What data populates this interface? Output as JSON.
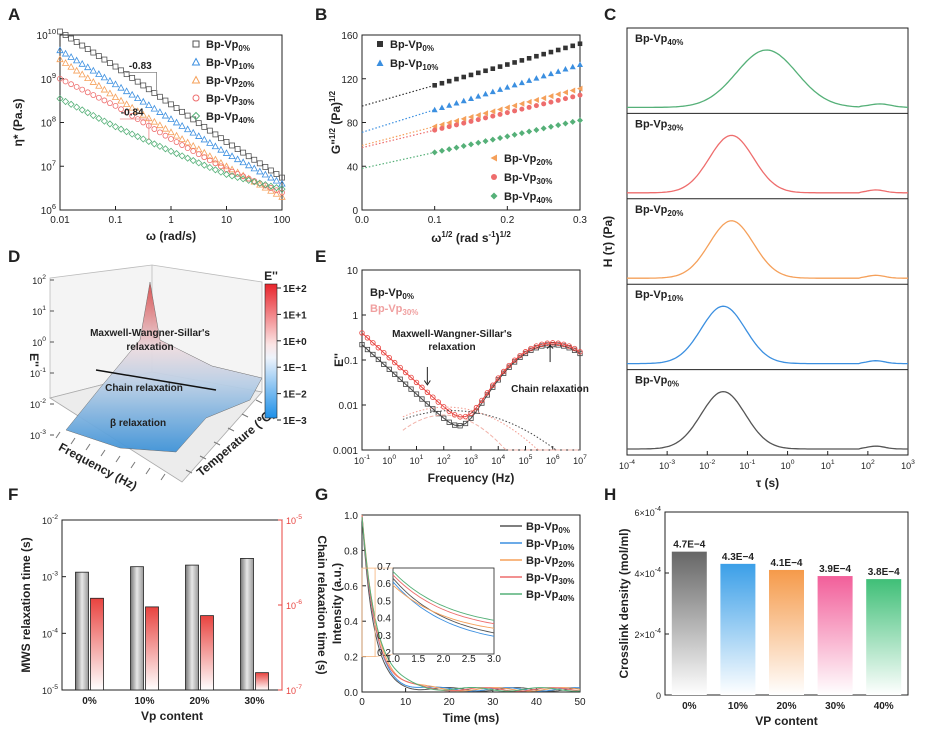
{
  "panel_labels": {
    "A": "A",
    "B": "B",
    "C": "C",
    "D": "D",
    "E": "E",
    "F": "F",
    "G": "G",
    "H": "H"
  },
  "colors": {
    "s0": "#555555",
    "s10": "#3b8fe0",
    "s20": "#f5a05a",
    "s30": "#ee6d6d",
    "s40": "#55b078",
    "red": "#e8433f",
    "green_b": "#4caf6a",
    "black_b": "#444444"
  },
  "chart_data": [
    {
      "id": "A",
      "type": "scatter",
      "xlabel": "ω (rad/s)",
      "ylabel": "η* (Pa.s)",
      "xscale": "log",
      "yscale": "log",
      "xlim": [
        0.01,
        100
      ],
      "ylim": [
        1000000.0,
        10000000000.0
      ],
      "xticks": [
        "0.01",
        "0.1",
        "1",
        "10",
        "100"
      ],
      "yticks": [
        "10^6",
        "10^7",
        "10^8",
        "10^9",
        "10^10"
      ],
      "annotations": [
        "-0.83",
        "-0.84"
      ],
      "series": [
        {
          "name": "Bp-Vp",
          "sub": "0%",
          "x": [
            0.01,
            0.1,
            1,
            10,
            100
          ],
          "y": [
            12000000000.0,
            1900000000.0,
            260000000.0,
            36000000.0,
            5500000.0
          ]
        },
        {
          "name": "Bp-Vp",
          "sub": "10%",
          "x": [
            0.01,
            0.1,
            1,
            10,
            100
          ],
          "y": [
            4500000000.0,
            750000000.0,
            120000000.0,
            20000000.0,
            4000000.0
          ]
        },
        {
          "name": "Bp-Vp",
          "sub": "20%",
          "x": [
            0.01,
            0.1,
            1,
            10,
            100
          ],
          "y": [
            2800000000.0,
            380000000.0,
            60000000.0,
            10000000.0,
            2000000.0
          ]
        },
        {
          "name": "Bp-Vp",
          "sub": "30%",
          "x": [
            0.01,
            0.1,
            1,
            10,
            100
          ],
          "y": [
            1000000000.0,
            240000000.0,
            42000000.0,
            8500000.0,
            2500000.0
          ]
        },
        {
          "name": "Bp-Vp",
          "sub": "40%",
          "x": [
            0.01,
            0.1,
            1,
            10,
            100
          ],
          "y": [
            350000000.0,
            80000000.0,
            22000000.0,
            6500000.0,
            3000000.0
          ]
        }
      ]
    },
    {
      "id": "B",
      "type": "scatter",
      "xlabel": "ω^1/2 (rad s^-1)^1/2",
      "ylabel": "G\"^1/2 (Pa)^1/2",
      "xlim": [
        0,
        0.3
      ],
      "ylim": [
        0,
        160
      ],
      "xticks": [
        "0.0",
        "0.1",
        "0.2",
        "0.3"
      ],
      "yticks": [
        "0",
        "40",
        "80",
        "120",
        "160"
      ],
      "series": [
        {
          "name": "Bp-Vp",
          "sub": "0%",
          "intercept": 95,
          "x": [
            0.1,
            0.15,
            0.2,
            0.25,
            0.3
          ],
          "y": [
            114,
            124,
            133,
            142,
            152
          ]
        },
        {
          "name": "Bp-Vp",
          "sub": "10%",
          "intercept": 71,
          "x": [
            0.1,
            0.15,
            0.2,
            0.25,
            0.3
          ],
          "y": [
            92,
            102,
            112,
            122,
            133
          ]
        },
        {
          "name": "Bp-Vp",
          "sub": "20%",
          "intercept": 59,
          "x": [
            0.1,
            0.15,
            0.2,
            0.25,
            0.3
          ],
          "y": [
            77,
            85,
            94,
            103,
            111
          ]
        },
        {
          "name": "Bp-Vp",
          "sub": "30%",
          "intercept": 57,
          "x": [
            0.1,
            0.15,
            0.2,
            0.25,
            0.3
          ],
          "y": [
            73,
            81,
            89,
            97,
            105
          ]
        },
        {
          "name": "Bp-Vp",
          "sub": "40%",
          "intercept": 38,
          "x": [
            0.1,
            0.15,
            0.2,
            0.25,
            0.3
          ],
          "y": [
            53,
            60,
            67,
            74,
            82
          ]
        }
      ]
    },
    {
      "id": "C",
      "type": "line",
      "xlabel": "τ (s)",
      "ylabel": "H (τ) (Pa)",
      "xscale": "log",
      "xlim": [
        0.0001,
        1000.0
      ],
      "xticks": [
        "10^-4",
        "10^-3",
        "10^-2",
        "10^-1",
        "10^0",
        "10^1",
        "10^2",
        "10^3"
      ],
      "panels": [
        {
          "name": "Bp-Vp",
          "sub": "40%",
          "peak_tau": 0.3
        },
        {
          "name": "Bp-Vp",
          "sub": "30%",
          "peak_tau": 0.04
        },
        {
          "name": "Bp-Vp",
          "sub": "20%",
          "peak_tau": 0.04
        },
        {
          "name": "Bp-Vp",
          "sub": "10%",
          "peak_tau": 0.025
        },
        {
          "name": "Bp-Vp",
          "sub": "0%",
          "peak_tau": 0.025
        }
      ]
    },
    {
      "id": "D",
      "type": "heatmap",
      "xlabel": "Frequency (Hz)",
      "ylabel": "Temperature (℃)",
      "zlabel": "E''",
      "colorbar_title": "E''",
      "colorbar_ticks": [
        "1E+2",
        "1E+1",
        "1E+0",
        "1E−1",
        "1E−2",
        "1E−3"
      ],
      "annotations": [
        "Maxwell-Wangner-Sillar's",
        "relaxation",
        "Chain relaxation",
        "β relaxation"
      ],
      "zticks": [
        "10^2",
        "10^1",
        "10^0",
        "10^-1",
        "10^-2",
        "10^-3"
      ]
    },
    {
      "id": "E",
      "type": "line",
      "xlabel": "Frequency (Hz)",
      "ylabel": "E''",
      "xscale": "log",
      "yscale": "log",
      "xlim": [
        0.1,
        10000000.0
      ],
      "ylim": [
        0.001,
        10
      ],
      "xticks": [
        "10^-1",
        "10^0",
        "10^1",
        "10^2",
        "10^3",
        "10^4",
        "10^5",
        "10^6",
        "10^7"
      ],
      "yticks": [
        "0.001",
        "0.01",
        "0.1",
        "1",
        "10"
      ],
      "annotations": [
        "Maxwell-Wangner-Sillar's",
        "relaxation",
        "Chain relaxation"
      ],
      "series": [
        {
          "name": "Bp-Vp",
          "sub": "0%"
        },
        {
          "name": "Bp-Vp",
          "sub": "30%"
        }
      ]
    },
    {
      "id": "F",
      "type": "bar",
      "xlabel": "Vp content",
      "ylabel": "MWS relaxation time (s)",
      "ylabel2": "Chain relaxation time (s)",
      "categories": [
        "0%",
        "10%",
        "20%",
        "30%"
      ],
      "yticks": [
        "10^-5",
        "10^-4",
        "10^-3",
        "10^-2"
      ],
      "y2ticks": [
        "10^-7",
        "10^-6",
        "10^-5"
      ],
      "series": [
        {
          "name": "MWS",
          "values": [
            0.0012,
            0.0015,
            0.0016,
            0.0021
          ]
        },
        {
          "name": "Chain",
          "values": [
            1.2e-06,
            9.5e-07,
            7.5e-07,
            1.6e-07
          ]
        }
      ]
    },
    {
      "id": "G",
      "type": "line",
      "xlabel": "Time (ms)",
      "ylabel": "Intensity (a.u.)",
      "xlim": [
        0,
        50
      ],
      "ylim": [
        0,
        1
      ],
      "xticks": [
        "0",
        "10",
        "20",
        "30",
        "40",
        "50"
      ],
      "yticks": [
        "0.0",
        "0.2",
        "0.4",
        "0.6",
        "0.8",
        "1.0"
      ],
      "inset": {
        "xlim": [
          1.0,
          3.0
        ],
        "ylim": [
          0.2,
          0.7
        ],
        "xticks": [
          "1.0",
          "1.5",
          "2.0",
          "2.5",
          "3.0"
        ],
        "yticks": [
          "0.2",
          "0.3",
          "0.4",
          "0.5",
          "0.6",
          "0.7"
        ]
      },
      "series": [
        {
          "name": "Bp-Vp",
          "sub": "0%"
        },
        {
          "name": "Bp-Vp",
          "sub": "10%"
        },
        {
          "name": "Bp-Vp",
          "sub": "20%"
        },
        {
          "name": "Bp-Vp",
          "sub": "30%"
        },
        {
          "name": "Bp-Vp",
          "sub": "40%"
        }
      ]
    },
    {
      "id": "H",
      "type": "bar",
      "xlabel": "VP content",
      "ylabel": "Crosslink density (mol/ml)",
      "categories": [
        "0%",
        "10%",
        "20%",
        "30%",
        "40%"
      ],
      "values": [
        0.00047,
        0.00043,
        0.00041,
        0.00039,
        0.00038
      ],
      "value_labels": [
        "4.7E−4",
        "4.3E−4",
        "4.1E−4",
        "3.9E−4",
        "3.8E−4"
      ],
      "ylim": [
        0,
        0.0006
      ],
      "yticks": [
        "0",
        "2×10^-4",
        "4×10^-4",
        "6×10^-4"
      ]
    }
  ]
}
